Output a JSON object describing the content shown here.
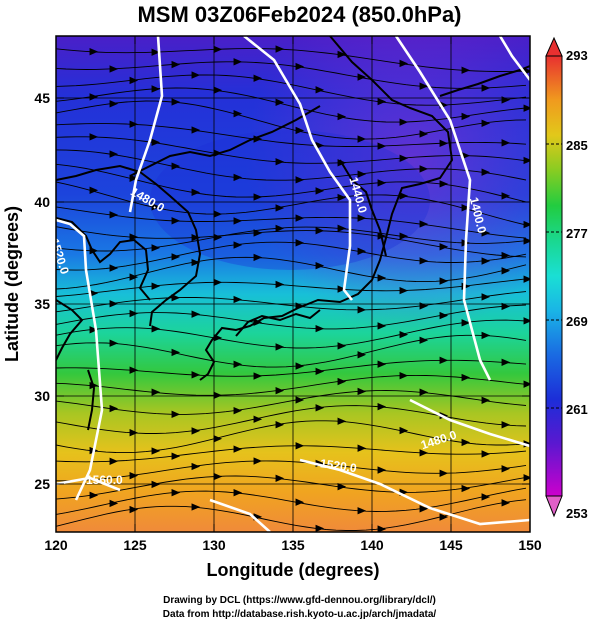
{
  "title": "MSM 03Z06Feb2024 (850.0hPa)",
  "map": {
    "x_axis": {
      "label": "Longitude (degrees)",
      "ticks": [
        120,
        125,
        130,
        135,
        140,
        145,
        150
      ],
      "range": [
        120,
        150
      ]
    },
    "y_axis": {
      "label": "Latitude  (degrees)",
      "ticks": [
        25,
        30,
        35,
        40,
        45
      ],
      "range": [
        22.4,
        47.6
      ]
    },
    "colorbar": {
      "min": 253,
      "max": 293,
      "labels": [
        "293",
        "285",
        "277",
        "269",
        "261",
        "253"
      ],
      "colors": [
        "#cc00cc",
        "#6a1fd4",
        "#2020d8",
        "#1a5ae0",
        "#1aa0e6",
        "#1adfdf",
        "#1adf9a",
        "#22cc44",
        "#66cc22",
        "#b8cc22",
        "#e8c81a",
        "#f2a01a",
        "#f07a2a",
        "#ee5a36",
        "#e83030"
      ]
    },
    "contour_labels": [
      "1480.0",
      "1440.0",
      "1520.0",
      "1400.0",
      "1480.0",
      "1520.0",
      "1560.0"
    ]
  },
  "credits": {
    "line1": "Drawing by DCL (https://www.gfd-dennou.org/library/dcl/)",
    "line2": "Data from http://database.rish.kyoto-u.ac.jp/arch/jmadata/"
  }
}
